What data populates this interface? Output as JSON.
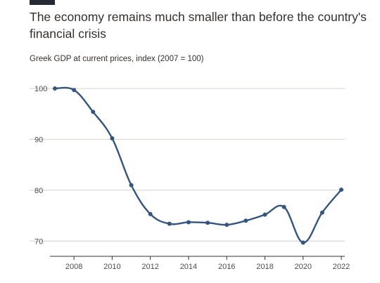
{
  "header": {
    "title": "The economy remains much smaller than before the country's financial crisis",
    "subtitle": "Greek GDP at current prices, index (2007 = 100)"
  },
  "colors": {
    "line": "#35557f",
    "grid": "#d4d0cb",
    "text": "#33302e"
  },
  "chart_data": {
    "type": "line",
    "title": "The economy remains much smaller than before the country's financial crisis",
    "subtitle": "Greek GDP at current prices, index (2007 = 100)",
    "xlabel": "",
    "ylabel": "",
    "x": [
      2007,
      2008,
      2009,
      2010,
      2011,
      2012,
      2013,
      2014,
      2015,
      2016,
      2017,
      2018,
      2019,
      2020,
      2021,
      2022
    ],
    "series": [
      {
        "values": [
          100,
          99.7,
          95.4,
          90.2,
          81.0,
          75.3,
          73.4,
          73.7,
          73.6,
          73.2,
          74.0,
          75.2,
          76.7,
          69.7,
          75.6,
          80.1
        ]
      }
    ],
    "xticks": [
      "2008",
      "2010",
      "2012",
      "2014",
      "2016",
      "2018",
      "2020",
      "2022"
    ],
    "yticks": [
      "70",
      "80",
      "90",
      "100"
    ],
    "xlim": [
      2007,
      2022
    ],
    "ylim": [
      67,
      100
    ],
    "grid": true,
    "legend": "none"
  }
}
